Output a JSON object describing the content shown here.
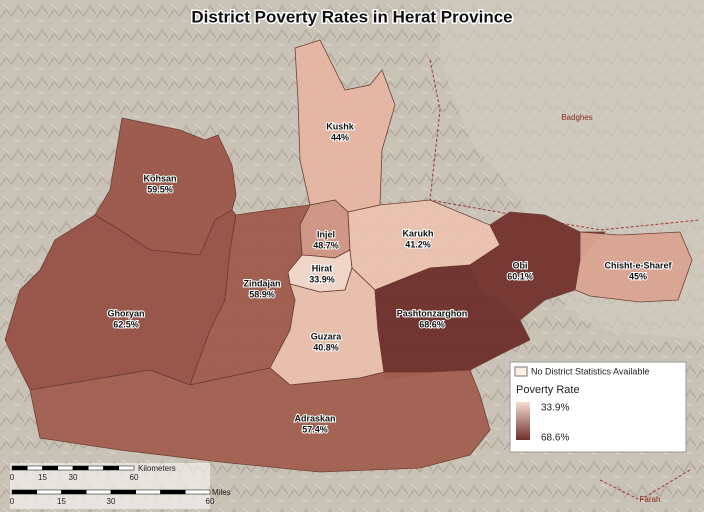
{
  "title": "District Poverty Rates in Herat Province",
  "districts": [
    {
      "name": "Kushk",
      "rate": "44%",
      "color": "#e6b6a2"
    },
    {
      "name": "Kohsan",
      "rate": "59.5%",
      "color": "#9b5749"
    },
    {
      "name": "Ghoryan",
      "rate": "62.5%",
      "color": "#975246"
    },
    {
      "name": "Zindajan",
      "rate": "58.9%",
      "color": "#a05b4c"
    },
    {
      "name": "Injel",
      "rate": "48.7%",
      "color": "#cf9584"
    },
    {
      "name": "Hirat",
      "rate": "33.9%",
      "color": "#f2d8cb"
    },
    {
      "name": "Karukh",
      "rate": "41.2%",
      "color": "#ebc2b0"
    },
    {
      "name": "Guzara",
      "rate": "40.8%",
      "color": "#e9bfad"
    },
    {
      "name": "Pashtonzarghon",
      "rate": "68.6%",
      "color": "#6e2f2b"
    },
    {
      "name": "Obi",
      "rate": "60.1%",
      "color": "#73322d"
    },
    {
      "name": "Chisht-e-Sharef",
      "rate": "45%",
      "color": "#dba592"
    },
    {
      "name": "Adraskan",
      "rate": "57.4%",
      "color": "#a35f4f"
    }
  ],
  "regions": [
    "Badghes",
    "Farah"
  ],
  "legend": {
    "no_data": "No District Statistics Available",
    "title": "Poverty Rate",
    "low": "33.9%",
    "high": "68.6%"
  },
  "scale_bar": {
    "km_unit": "Kilometers",
    "km_ticks": [
      "0",
      "15",
      "30",
      "60"
    ],
    "mi_unit": "Miles",
    "mi_ticks": [
      "0",
      "15",
      "30",
      "60"
    ]
  }
}
